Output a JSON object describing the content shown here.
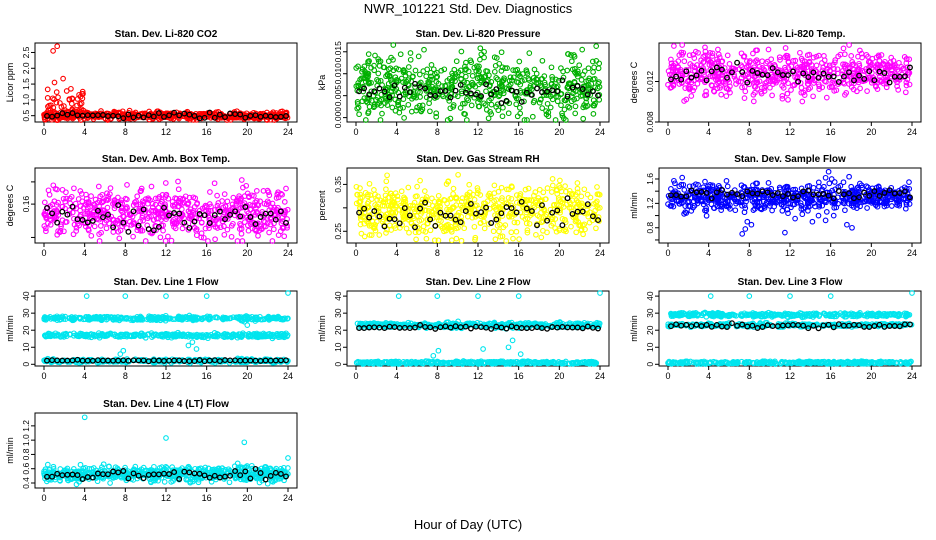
{
  "page": {
    "title": "NWR_101221  Std. Dev. Diagnostics",
    "xlabel": "Hour of Day (UTC)"
  },
  "chart_data": [
    {
      "type": "scatter",
      "title": "Stan. Dev. Li-820 CO2",
      "ylabel": "Licor ppm",
      "xlim": [
        0,
        24
      ],
      "ylim": [
        0.3,
        2.8
      ],
      "xticks": [
        "0",
        "4",
        "8",
        "12",
        "16",
        "20",
        "24"
      ],
      "yticks": [
        0.5,
        1.0,
        1.5,
        2.0,
        2.5
      ],
      "ytick_labels": [
        "0.5",
        "1.0",
        "1.5",
        "2.0",
        "2.5"
      ],
      "color": "#ff0000",
      "series": [
        {
          "name": "cluster",
          "base": 0.5,
          "spread": 0.06,
          "n": 520
        },
        {
          "name": "early excursion",
          "x_range": [
            0.3,
            4
          ],
          "base": 0.8,
          "spread": 0.35,
          "n": 55
        },
        {
          "name": "peaks",
          "x": [
            0.9,
            1.3,
            2.5,
            3.6
          ],
          "y": [
            2.55,
            2.7,
            1.0,
            1.1
          ]
        },
        {
          "name": "hourly means",
          "base": 0.5,
          "spread": 0.05
        }
      ]
    },
    {
      "type": "scatter",
      "title": "Stan. Dev. Li-820 Pressure",
      "ylabel": "kPa",
      "xlim": [
        0,
        24
      ],
      "ylim": [
        -0.001,
        0.017
      ],
      "xticks": [
        "0",
        "4",
        "8",
        "12",
        "16",
        "20",
        "24"
      ],
      "yticks": [
        0.0,
        0.005,
        0.01,
        0.015
      ],
      "ytick_labels": [
        "0.000",
        "0.005",
        "0.010",
        "0.015"
      ],
      "color": "#00b000",
      "series": [
        {
          "name": "samples",
          "base": 0.007,
          "spread": 0.0035,
          "n": 620
        },
        {
          "name": "hourly means",
          "base": 0.006,
          "spread": 0.0012
        }
      ]
    },
    {
      "type": "scatter",
      "title": "Stan. Dev. Li-820 Temp.",
      "ylabel": "degrees C",
      "xlim": [
        0,
        24
      ],
      "ylim": [
        0.008,
        0.0158
      ],
      "xticks": [
        "0",
        "4",
        "8",
        "12",
        "16",
        "20",
        "24"
      ],
      "yticks": [
        0.008,
        0.012
      ],
      "ytick_labels": [
        "0.008",
        "0.012"
      ],
      "color": "#ff00ff",
      "series": [
        {
          "name": "samples",
          "base": 0.0128,
          "spread": 0.0011,
          "n": 620
        },
        {
          "name": "hourly means",
          "base": 0.0127,
          "spread": 0.0005
        }
      ]
    },
    {
      "type": "scatter",
      "title": "Stan. Dev. Amb. Box Temp.",
      "ylabel": "degrees C",
      "xlim": [
        0,
        24
      ],
      "ylim": [
        0.09,
        0.225
      ],
      "xticks": [
        "0",
        "4",
        "8",
        "12",
        "16",
        "20",
        "24"
      ],
      "yticks": [
        0.1,
        0.16,
        0.2
      ],
      "ytick_labels": [
        "",
        "0.16",
        ""
      ],
      "color": "#ff00ff",
      "series": [
        {
          "name": "samples",
          "base": 0.145,
          "spread": 0.022,
          "n": 620
        },
        {
          "name": "hourly means",
          "base": 0.135,
          "spread": 0.012
        }
      ]
    },
    {
      "type": "scatter",
      "title": "Stan. Dev. Gas Stream RH",
      "ylabel": "percent",
      "xlim": [
        0,
        24
      ],
      "ylim": [
        0.225,
        0.385
      ],
      "xticks": [
        "0",
        "4",
        "8",
        "12",
        "16",
        "20",
        "24"
      ],
      "yticks": [
        0.25,
        0.3,
        0.35
      ],
      "ytick_labels": [
        "0.25",
        "",
        "0.35"
      ],
      "color": "#ffff00",
      "series": [
        {
          "name": "samples",
          "base": 0.295,
          "spread": 0.028,
          "n": 620
        },
        {
          "name": "hourly means",
          "base": 0.29,
          "spread": 0.018
        }
      ]
    },
    {
      "type": "scatter",
      "title": "Stan. Dev. Sample Flow",
      "ylabel": "ml/min",
      "xlim": [
        0,
        24
      ],
      "ylim": [
        0.55,
        1.78
      ],
      "xticks": [
        "0",
        "4",
        "8",
        "12",
        "16",
        "20",
        "24"
      ],
      "yticks": [
        0.6,
        0.8,
        1.0,
        1.2,
        1.4,
        1.6
      ],
      "ytick_labels": [
        "",
        "0.8",
        "",
        "1.2",
        "",
        "1.6"
      ],
      "color": "#0000ff",
      "series": [
        {
          "name": "samples",
          "base": 1.3,
          "spread": 0.11,
          "n": 620
        },
        {
          "name": "low outliers",
          "x": [
            7.3,
            7.6,
            7.8,
            8.2,
            11.5,
            12.5,
            14.2,
            14.8,
            15.5,
            16.3,
            17.6,
            18.1
          ],
          "y": [
            0.7,
            0.78,
            0.9,
            0.85,
            0.72,
            0.95,
            0.9,
            1.0,
            0.92,
            1.0,
            0.85,
            0.8
          ]
        },
        {
          "name": "high outliers",
          "x": [
            15.5,
            15.8,
            16.1,
            16.4
          ],
          "y": [
            1.62,
            1.72,
            1.6,
            1.55
          ]
        },
        {
          "name": "hourly means",
          "base": 1.35,
          "spread": 0.04
        }
      ]
    },
    {
      "type": "scatter",
      "title": "Stan. Dev. Line 1 Flow",
      "ylabel": "ml/min",
      "xlim": [
        0,
        24
      ],
      "ylim": [
        -1,
        43
      ],
      "xticks": [
        "0",
        "4",
        "8",
        "12",
        "16",
        "20",
        "24"
      ],
      "yticks": [
        0,
        10,
        20,
        30,
        40
      ],
      "ytick_labels": [
        "0",
        "10",
        "20",
        "30",
        "40"
      ],
      "color": "#00e5ee",
      "series": [
        {
          "name": "band high",
          "base": 27,
          "spread": 0.6,
          "n": 330
        },
        {
          "name": "band mid",
          "base": 17,
          "spread": 0.6,
          "n": 330
        },
        {
          "name": "band low",
          "base": 2,
          "spread": 0.5,
          "n": 330
        },
        {
          "name": "outliers",
          "x": [
            4.2,
            8.0,
            12.0,
            16.0,
            24.0,
            7.5,
            7.8,
            14.2,
            14.6,
            15.0,
            19.7,
            20.0
          ],
          "y": [
            40,
            40,
            40,
            40,
            42,
            6,
            8,
            11,
            13,
            9,
            25,
            23
          ]
        },
        {
          "name": "hourly means",
          "base": 2.2,
          "spread": 0.2
        }
      ]
    },
    {
      "type": "scatter",
      "title": "Stan. Dev. Line 2 Flow",
      "ylabel": "ml/min",
      "xlim": [
        0,
        24
      ],
      "ylim": [
        -1,
        43
      ],
      "xticks": [
        "0",
        "4",
        "8",
        "12",
        "16",
        "20",
        "24"
      ],
      "yticks": [
        0,
        10,
        20,
        30,
        40
      ],
      "ytick_labels": [
        "0",
        "10",
        "20",
        "30",
        "40"
      ],
      "color": "#00e5ee",
      "series": [
        {
          "name": "band upper",
          "base": 23,
          "spread": 0.8,
          "n": 400
        },
        {
          "name": "band zero",
          "base": 1,
          "spread": 0.4,
          "n": 330
        },
        {
          "name": "outliers",
          "x": [
            4.2,
            8.0,
            12.0,
            16.0,
            24.0,
            7.6,
            8.1,
            15.0,
            15.4,
            16.2,
            12.5
          ],
          "y": [
            40,
            40,
            40,
            40,
            42,
            5,
            8,
            10,
            14,
            6,
            9
          ]
        },
        {
          "name": "hourly means",
          "base": 21.5,
          "spread": 0.5
        }
      ]
    },
    {
      "type": "scatter",
      "title": "Stan. Dev. Line 3 Flow",
      "ylabel": "ml/min",
      "xlim": [
        0,
        24
      ],
      "ylim": [
        -1,
        43
      ],
      "xticks": [
        "0",
        "4",
        "8",
        "12",
        "16",
        "20",
        "24"
      ],
      "yticks": [
        0,
        10,
        20,
        30,
        40
      ],
      "ytick_labels": [
        "0",
        "10",
        "20",
        "30",
        "40"
      ],
      "color": "#00e5ee",
      "series": [
        {
          "name": "band upper",
          "base": 29,
          "spread": 0.6,
          "n": 330
        },
        {
          "name": "band lower",
          "base": 23,
          "spread": 0.5,
          "n": 330
        },
        {
          "name": "band zero",
          "base": 1,
          "spread": 0.4,
          "n": 330
        },
        {
          "name": "outliers",
          "x": [
            4.2,
            8.0,
            12.0,
            16.0,
            24.0
          ],
          "y": [
            40,
            40,
            40,
            40,
            42
          ]
        },
        {
          "name": "hourly means",
          "base": 22.5,
          "spread": 0.6
        }
      ]
    },
    {
      "type": "scatter",
      "title": "Stan. Dev. Line 4 (LT) Flow",
      "ylabel": "ml/min",
      "xlim": [
        0,
        24
      ],
      "ylim": [
        0.33,
        1.38
      ],
      "xticks": [
        "0",
        "4",
        "8",
        "12",
        "16",
        "20",
        "24"
      ],
      "yticks": [
        0.4,
        0.6,
        0.8,
        1.0,
        1.2
      ],
      "ytick_labels": [
        "0.4",
        "0.6",
        "0.8",
        "1.0",
        "1.2"
      ],
      "color": "#00e5ee",
      "series": [
        {
          "name": "samples",
          "base": 0.53,
          "spread": 0.05,
          "n": 620
        },
        {
          "name": "outliers",
          "x": [
            4.0,
            12.0,
            19.7,
            24.0,
            3.2,
            6.5,
            10.5,
            15.2,
            22.0
          ],
          "y": [
            1.32,
            1.03,
            0.97,
            0.75,
            0.38,
            0.4,
            0.42,
            0.41,
            0.39
          ]
        },
        {
          "name": "hourly means",
          "base": 0.52,
          "spread": 0.04
        }
      ]
    }
  ]
}
